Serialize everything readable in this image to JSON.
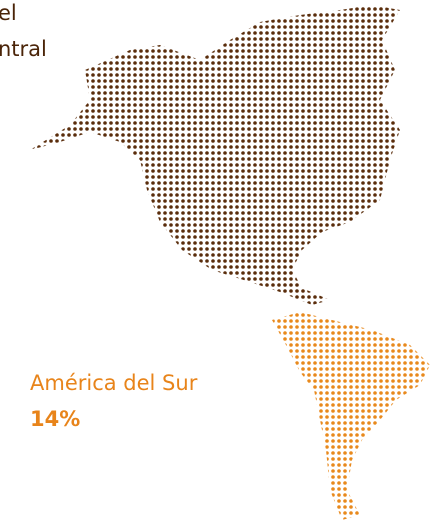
{
  "north_label": {
    "line1": "el",
    "line2": "ntral"
  },
  "south_label": {
    "name": "América del Sur",
    "share": "14%"
  }
}
